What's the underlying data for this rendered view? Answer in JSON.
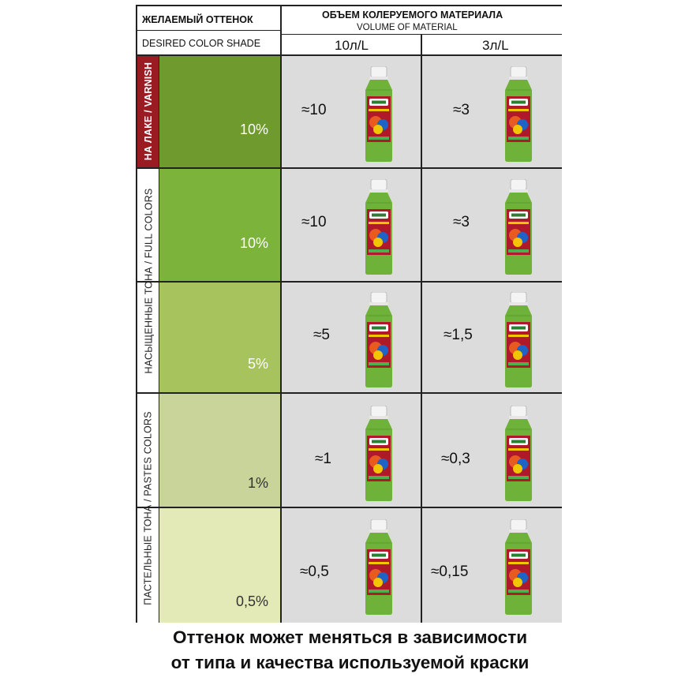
{
  "header": {
    "desired_ru": "ЖЕЛАЕМЫЙ ОТТЕНОК",
    "desired_en": "DESIRED  COLOR SHADE",
    "volume_ru": "ОБЪЕМ КОЛЕРУЕМОГО МАТЕРИАЛА",
    "volume_en": "VOLUME OF MATERIAL",
    "col1": "10л/L",
    "col2": "3л/L"
  },
  "groups": {
    "varnish": "НА ЛАКЕ / VARNISH",
    "full": "НАСЫЩЕННЫЕ ТОНА / FULL COLORS",
    "pastes": "ПАСТЕЛЬНЫЕ ТОНА / PASTES COLORS"
  },
  "rows": [
    {
      "pct": "10%",
      "v10": "≈10",
      "v3": "≈3",
      "color": "#6e9a2e"
    },
    {
      "pct": "10%",
      "v10": "≈10",
      "v3": "≈3",
      "color": "#7cb33a"
    },
    {
      "pct": "5%",
      "v10": "≈5",
      "v3": "≈1,5",
      "color": "#a7c35d"
    },
    {
      "pct": "1%",
      "v10": "≈1",
      "v3": "≈0,3",
      "color": "#c8d49a"
    },
    {
      "pct": "0,5%",
      "v10": "≈0,5",
      "v3": "≈0,15",
      "color": "#e3eab8"
    }
  ],
  "bottle": {
    "brand": "Palizh",
    "label": "КОЛЕР",
    "icon": "colorant-bottle-icon"
  },
  "footer": {
    "line1": "Оттенок может меняться в зависимости",
    "line2": "от типа и качества используемой краски"
  }
}
